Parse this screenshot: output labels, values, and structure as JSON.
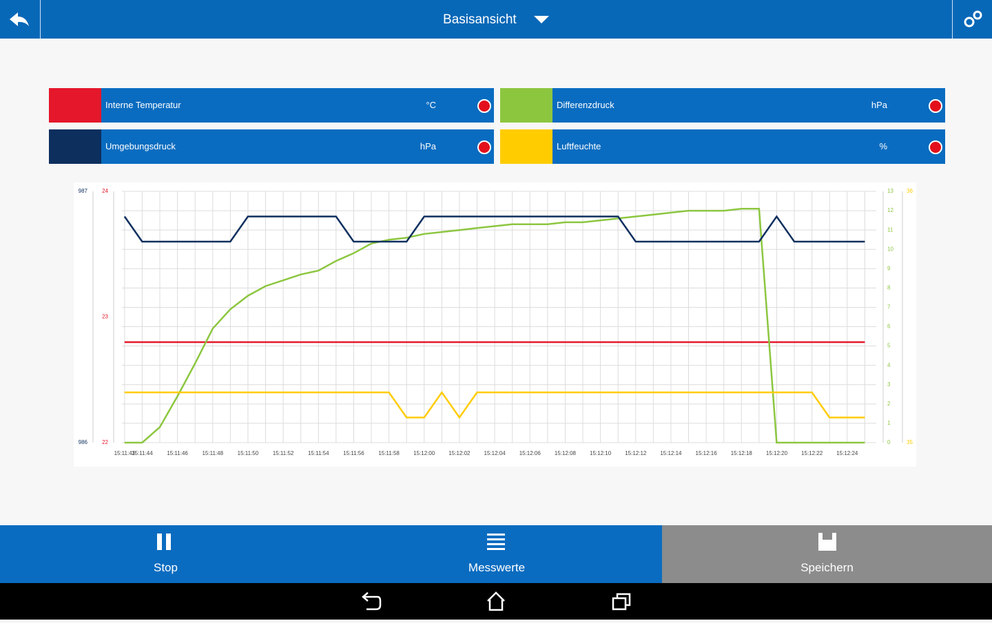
{
  "header": {
    "title": "Basisansicht"
  },
  "chart_data": {
    "type": "line",
    "categories": [
      "15:11:43",
      "15:11:44",
      null,
      "15:11:46",
      null,
      "15:11:48",
      null,
      "15:11:50",
      null,
      "15:11:52",
      null,
      "15:11:54",
      null,
      "15:11:56",
      null,
      "15:11:58",
      null,
      "15:12:00",
      null,
      "15:12:02",
      null,
      "15:12:04",
      null,
      "15:12:06",
      null,
      "15:12:08",
      null,
      "15:12:10",
      null,
      "15:12:12",
      null,
      "15:12:14",
      null,
      "15:12:16",
      null,
      "15:12:18",
      null,
      "15:12:20",
      null,
      "15:12:22",
      null,
      "15:12:24",
      null
    ],
    "grid": true,
    "series": [
      {
        "name": "Interne Temperatur",
        "unit": "°C",
        "color": "#e5172b",
        "axis": "left",
        "ylim": [
          22,
          24
        ],
        "yticks": [
          22,
          23,
          24
        ],
        "values": [
          22.8,
          22.8,
          22.8,
          22.8,
          22.8,
          22.8,
          22.8,
          22.8,
          22.8,
          22.8,
          22.8,
          22.8,
          22.8,
          22.8,
          22.8,
          22.8,
          22.8,
          22.8,
          22.8,
          22.8,
          22.8,
          22.8,
          22.8,
          22.8,
          22.8,
          22.8,
          22.8,
          22.8,
          22.8,
          22.8,
          22.8,
          22.8,
          22.8,
          22.8,
          22.8,
          22.8,
          22.8,
          22.8,
          22.8,
          22.8,
          22.8,
          22.8,
          22.8
        ]
      },
      {
        "name": "Differenzdruck",
        "unit": "hPa",
        "color": "#8cc63f",
        "axis": "right",
        "ylim": [
          0,
          13
        ],
        "yticks": [
          0,
          1,
          2,
          3,
          4,
          5,
          6,
          7,
          8,
          9,
          10,
          11,
          12,
          13
        ],
        "grid": true,
        "values": [
          0,
          0,
          0.8,
          2.4,
          4.1,
          5.9,
          6.9,
          7.6,
          8.1,
          8.4,
          8.7,
          8.9,
          9.4,
          9.8,
          10.3,
          10.5,
          10.6,
          10.8,
          10.9,
          11.0,
          11.1,
          11.2,
          11.3,
          11.3,
          11.3,
          11.4,
          11.4,
          11.5,
          11.6,
          11.7,
          11.8,
          11.9,
          12.0,
          12.0,
          12.0,
          12.1,
          12.1,
          0,
          0,
          0,
          0,
          0,
          0
        ]
      },
      {
        "name": "Umgebungsdruck",
        "unit": "hPa",
        "color": "#0d2f5e",
        "axis": "left",
        "ylim": [
          986,
          987
        ],
        "yticks": [
          986,
          987
        ],
        "values": [
          986.9,
          986.8,
          986.8,
          986.8,
          986.8,
          986.8,
          986.8,
          986.9,
          986.9,
          986.9,
          986.9,
          986.9,
          986.9,
          986.8,
          986.8,
          986.8,
          986.8,
          986.9,
          986.9,
          986.9,
          986.9,
          986.9,
          986.9,
          986.9,
          986.9,
          986.9,
          986.9,
          986.9,
          986.9,
          986.8,
          986.8,
          986.8,
          986.8,
          986.8,
          986.8,
          986.8,
          986.8,
          986.9,
          986.8,
          986.8,
          986.8,
          986.8,
          986.8
        ]
      },
      {
        "name": "Luftfeuchte",
        "unit": "%",
        "color": "#ffcc00",
        "axis": "right",
        "ylim": [
          35,
          36
        ],
        "yticks": [
          35,
          36
        ],
        "values": [
          35.2,
          35.2,
          35.2,
          35.2,
          35.2,
          35.2,
          35.2,
          35.2,
          35.2,
          35.2,
          35.2,
          35.2,
          35.2,
          35.2,
          35.2,
          35.2,
          35.1,
          35.1,
          35.2,
          35.1,
          35.2,
          35.2,
          35.2,
          35.2,
          35.2,
          35.2,
          35.2,
          35.2,
          35.2,
          35.2,
          35.2,
          35.2,
          35.2,
          35.2,
          35.2,
          35.2,
          35.2,
          35.2,
          35.2,
          35.2,
          35.1,
          35.1,
          35.1
        ]
      }
    ]
  },
  "toolbar": {
    "buttons": [
      "Stop",
      "Messwerte",
      "Speichern"
    ]
  }
}
